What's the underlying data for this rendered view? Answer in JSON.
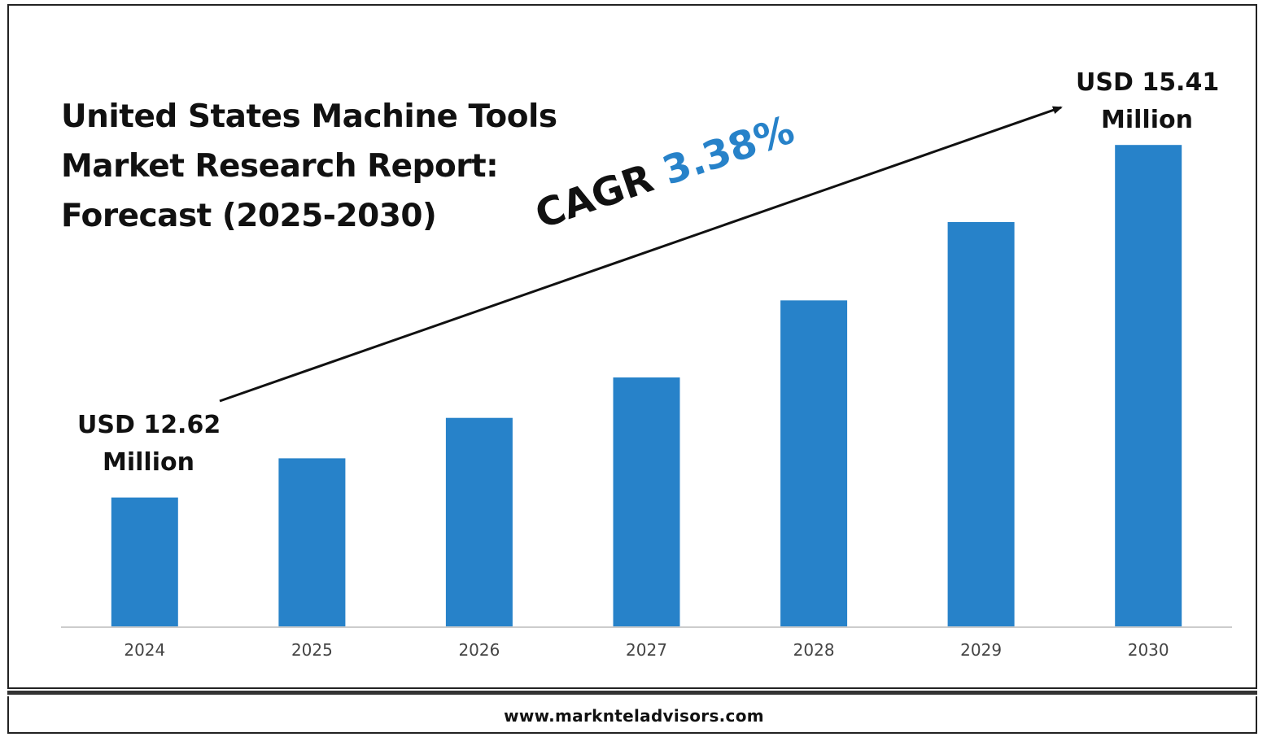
{
  "title_lines": [
    "United States Machine Tools",
    "Market Research Report:",
    "Forecast (2025-2030)"
  ],
  "cagr": {
    "label": "CAGR",
    "value": "3.38%"
  },
  "start_annotation": {
    "line1": "USD 12.62",
    "line2": "Million"
  },
  "end_annotation": {
    "line1": "USD 15.41",
    "line2": "Million"
  },
  "footer_url": "www.marknteladvisors.com",
  "colors": {
    "bar": "#2782c9",
    "cagr_value": "#2782c9",
    "axis": "#cccccc",
    "text": "#111111"
  },
  "chart_data": {
    "type": "bar",
    "categories": [
      "2024",
      "2025",
      "2026",
      "2027",
      "2028",
      "2029",
      "2030"
    ],
    "values": [
      12.62,
      12.93,
      13.25,
      13.57,
      14.18,
      14.8,
      15.41
    ],
    "ylim": [
      11.6,
      16.3
    ],
    "unit": "USD Million",
    "grid": false,
    "legend": "none"
  }
}
